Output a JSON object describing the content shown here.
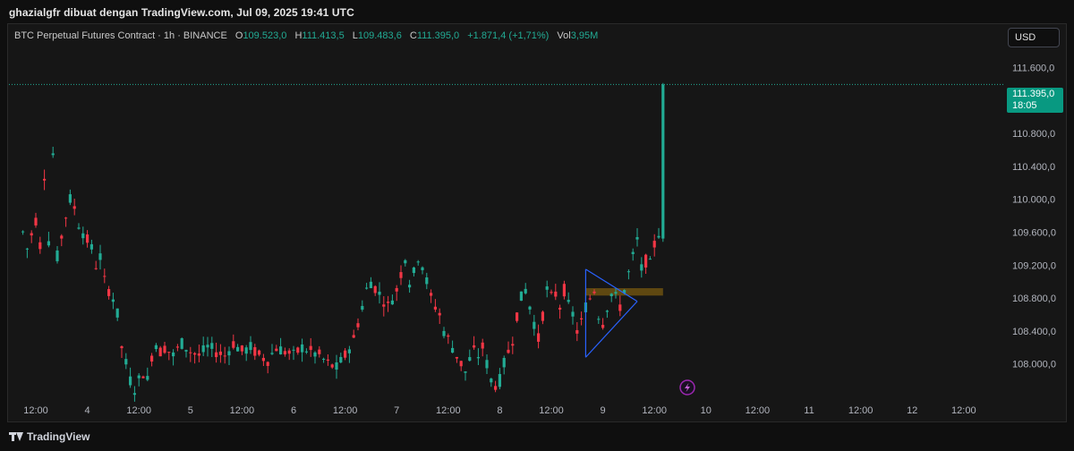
{
  "header": {
    "attribution": "ghazialgfr dibuat dengan TradingView.com, Jul 09, 2025 19:41 UTC"
  },
  "legend": {
    "title": "BTC Perpetual Futures Contract · 1h · BINANCE",
    "o_label": "O",
    "o_value": "109.523,0",
    "h_label": "H",
    "h_value": "111.413,5",
    "l_label": "L",
    "l_value": "109.483,6",
    "c_label": "C",
    "c_value": "111.395,0",
    "change": "+1.871,4 (+1,71%)",
    "vol_label": "Vol",
    "vol_value": "3,95M"
  },
  "currency_button": "USD",
  "last_price": {
    "price": "111.395,0",
    "countdown": "18:05"
  },
  "footer": {
    "brand": "TradingView"
  },
  "colors": {
    "up": "#22ab94",
    "down": "#f23645",
    "pattern": "#2962ff",
    "zone": "#b8860b",
    "lightning": "#9c27b0"
  },
  "icons": {
    "lightning": "lightning-icon",
    "logo": "tradingview-logo-icon"
  },
  "chart_data": {
    "type": "candlestick",
    "y_ticks": [
      "111.600,0",
      "110.800,0",
      "110.400,0",
      "110.000,0",
      "109.600,0",
      "109.200,0",
      "108.800,0",
      "108.400,0",
      "108.000,0"
    ],
    "y_tick_values": [
      111600,
      110800,
      110400,
      110000,
      109600,
      109200,
      108800,
      108400,
      108000
    ],
    "x_ticks": [
      "12:00",
      "4",
      "12:00",
      "5",
      "12:00",
      "6",
      "12:00",
      "7",
      "12:00",
      "8",
      "12:00",
      "9",
      "12:00",
      "10",
      "12:00",
      "11",
      "12:00",
      "12",
      "12:00"
    ],
    "x_tick_hours": [
      0,
      12,
      24,
      36,
      48,
      60,
      72,
      84,
      96,
      108,
      120,
      132,
      144,
      156,
      168,
      180,
      192,
      204,
      216
    ],
    "ylim": [
      107550,
      111900
    ],
    "last_price_value": 111395,
    "triangle": {
      "apex": [
        140,
        108760
      ],
      "upper_start": [
        128,
        109150
      ],
      "lower_start": [
        128,
        108080
      ]
    },
    "zone": {
      "x": [
        128,
        146
      ],
      "y": [
        108830,
        108920
      ]
    },
    "anchors": [
      [
        -3,
        109600
      ],
      [
        -2,
        109400
      ],
      [
        0,
        109750
      ],
      [
        1,
        109450
      ],
      [
        2,
        110300
      ],
      [
        3,
        109500
      ],
      [
        4,
        110550
      ],
      [
        5,
        109300
      ],
      [
        6,
        109550
      ],
      [
        7,
        109800
      ],
      [
        8,
        110000
      ],
      [
        9,
        109900
      ],
      [
        10,
        109700
      ],
      [
        11,
        109600
      ],
      [
        12,
        109500
      ],
      [
        13,
        109400
      ],
      [
        14,
        109200
      ],
      [
        15,
        109300
      ],
      [
        16,
        109000
      ],
      [
        17,
        108900
      ],
      [
        18,
        108800
      ],
      [
        19,
        108600
      ],
      [
        20,
        108200
      ],
      [
        21,
        108000
      ],
      [
        22,
        107800
      ],
      [
        23,
        107700
      ],
      [
        24,
        107800
      ],
      [
        25,
        107900
      ],
      [
        26,
        107800
      ],
      [
        27,
        108100
      ],
      [
        28,
        108250
      ],
      [
        29,
        108150
      ],
      [
        30,
        108200
      ],
      [
        32,
        108100
      ],
      [
        34,
        108250
      ],
      [
        36,
        108150
      ],
      [
        38,
        108100
      ],
      [
        40,
        108200
      ],
      [
        42,
        108150
      ],
      [
        44,
        108100
      ],
      [
        46,
        108250
      ],
      [
        48,
        108150
      ],
      [
        50,
        108200
      ],
      [
        52,
        108100
      ],
      [
        54,
        108050
      ],
      [
        56,
        108200
      ],
      [
        58,
        108150
      ],
      [
        60,
        108100
      ],
      [
        62,
        108200
      ],
      [
        64,
        108150
      ],
      [
        66,
        108100
      ],
      [
        68,
        108000
      ],
      [
        70,
        107950
      ],
      [
        72,
        108100
      ],
      [
        74,
        108300
      ],
      [
        76,
        108700
      ],
      [
        77,
        108900
      ],
      [
        78,
        109000
      ],
      [
        80,
        108850
      ],
      [
        82,
        108700
      ],
      [
        84,
        108900
      ],
      [
        85,
        109100
      ],
      [
        86,
        109300
      ],
      [
        87,
        109000
      ],
      [
        88,
        109100
      ],
      [
        89,
        109300
      ],
      [
        90,
        109200
      ],
      [
        91,
        109000
      ],
      [
        92,
        108800
      ],
      [
        93,
        108700
      ],
      [
        94,
        108600
      ],
      [
        95,
        108400
      ],
      [
        96,
        108300
      ],
      [
        97,
        108200
      ],
      [
        98,
        108100
      ],
      [
        99,
        108000
      ],
      [
        100,
        107900
      ],
      [
        101,
        108050
      ],
      [
        102,
        108150
      ],
      [
        103,
        108100
      ],
      [
        104,
        108200
      ],
      [
        105,
        108000
      ],
      [
        106,
        107800
      ],
      [
        107,
        107750
      ],
      [
        108,
        107800
      ],
      [
        109,
        108000
      ],
      [
        110,
        108150
      ],
      [
        111,
        108300
      ],
      [
        112,
        108600
      ],
      [
        113,
        108800
      ],
      [
        114,
        108900
      ],
      [
        115,
        108700
      ],
      [
        116,
        108500
      ],
      [
        117,
        108300
      ],
      [
        118,
        108600
      ],
      [
        119,
        108900
      ],
      [
        120,
        108800
      ],
      [
        121,
        108850
      ],
      [
        122,
        108700
      ],
      [
        123,
        108900
      ],
      [
        124,
        108700
      ],
      [
        125,
        108600
      ],
      [
        126,
        108400
      ],
      [
        127,
        108500
      ],
      [
        128,
        108700
      ],
      [
        129,
        108800
      ],
      [
        130,
        108900
      ],
      [
        131,
        108600
      ],
      [
        132,
        108500
      ],
      [
        133,
        108700
      ],
      [
        134,
        108850
      ],
      [
        135,
        108800
      ],
      [
        136,
        108700
      ],
      [
        137,
        108900
      ],
      [
        138,
        109100
      ],
      [
        139,
        109300
      ],
      [
        140,
        109500
      ],
      [
        141,
        109150
      ],
      [
        142,
        109250
      ],
      [
        143,
        109200
      ],
      [
        144,
        109450
      ],
      [
        145,
        109600
      ]
    ],
    "last_candle": {
      "hour": 146,
      "open": 109523,
      "high": 111413.5,
      "low": 109483.6,
      "close": 111395
    }
  }
}
